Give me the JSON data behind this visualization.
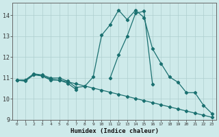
{
  "xlabel": "Humidex (Indice chaleur)",
  "background_color": "#ceeaea",
  "line_color": "#1a7070",
  "grid_color": "#aecece",
  "x_values": [
    0,
    1,
    2,
    3,
    4,
    5,
    6,
    7,
    8,
    9,
    10,
    11,
    12,
    13,
    14,
    15,
    16,
    17,
    18,
    19,
    20,
    21,
    22,
    23
  ],
  "series1_x": [
    0,
    1,
    2,
    3,
    4,
    5,
    6,
    7,
    11,
    12,
    13,
    14,
    15,
    16
  ],
  "series1_y": [
    10.9,
    10.9,
    11.2,
    11.1,
    10.9,
    10.9,
    10.75,
    10.45,
    11.0,
    12.1,
    13.0,
    14.1,
    14.2,
    10.7
  ],
  "series2": [
    10.9,
    10.9,
    11.2,
    11.15,
    11.0,
    11.0,
    10.85,
    10.55,
    10.6,
    11.05,
    13.05,
    13.55,
    14.25,
    13.8,
    14.25,
    13.9,
    12.4,
    11.7,
    11.05,
    10.8,
    10.3,
    10.3,
    9.7,
    9.3
  ],
  "series3": [
    10.9,
    10.85,
    11.15,
    11.1,
    10.95,
    10.9,
    10.82,
    10.72,
    10.62,
    10.52,
    10.42,
    10.32,
    10.22,
    10.12,
    10.02,
    9.92,
    9.82,
    9.72,
    9.62,
    9.52,
    9.42,
    9.32,
    9.22,
    9.12
  ],
  "ylim": [
    9.0,
    14.6
  ],
  "xlim": [
    -0.5,
    23.5
  ],
  "yticks": [
    9,
    10,
    11,
    12,
    13,
    14
  ],
  "xticks": [
    0,
    1,
    2,
    3,
    4,
    5,
    6,
    7,
    8,
    9,
    10,
    11,
    12,
    13,
    14,
    15,
    16,
    17,
    18,
    19,
    20,
    21,
    22,
    23
  ]
}
